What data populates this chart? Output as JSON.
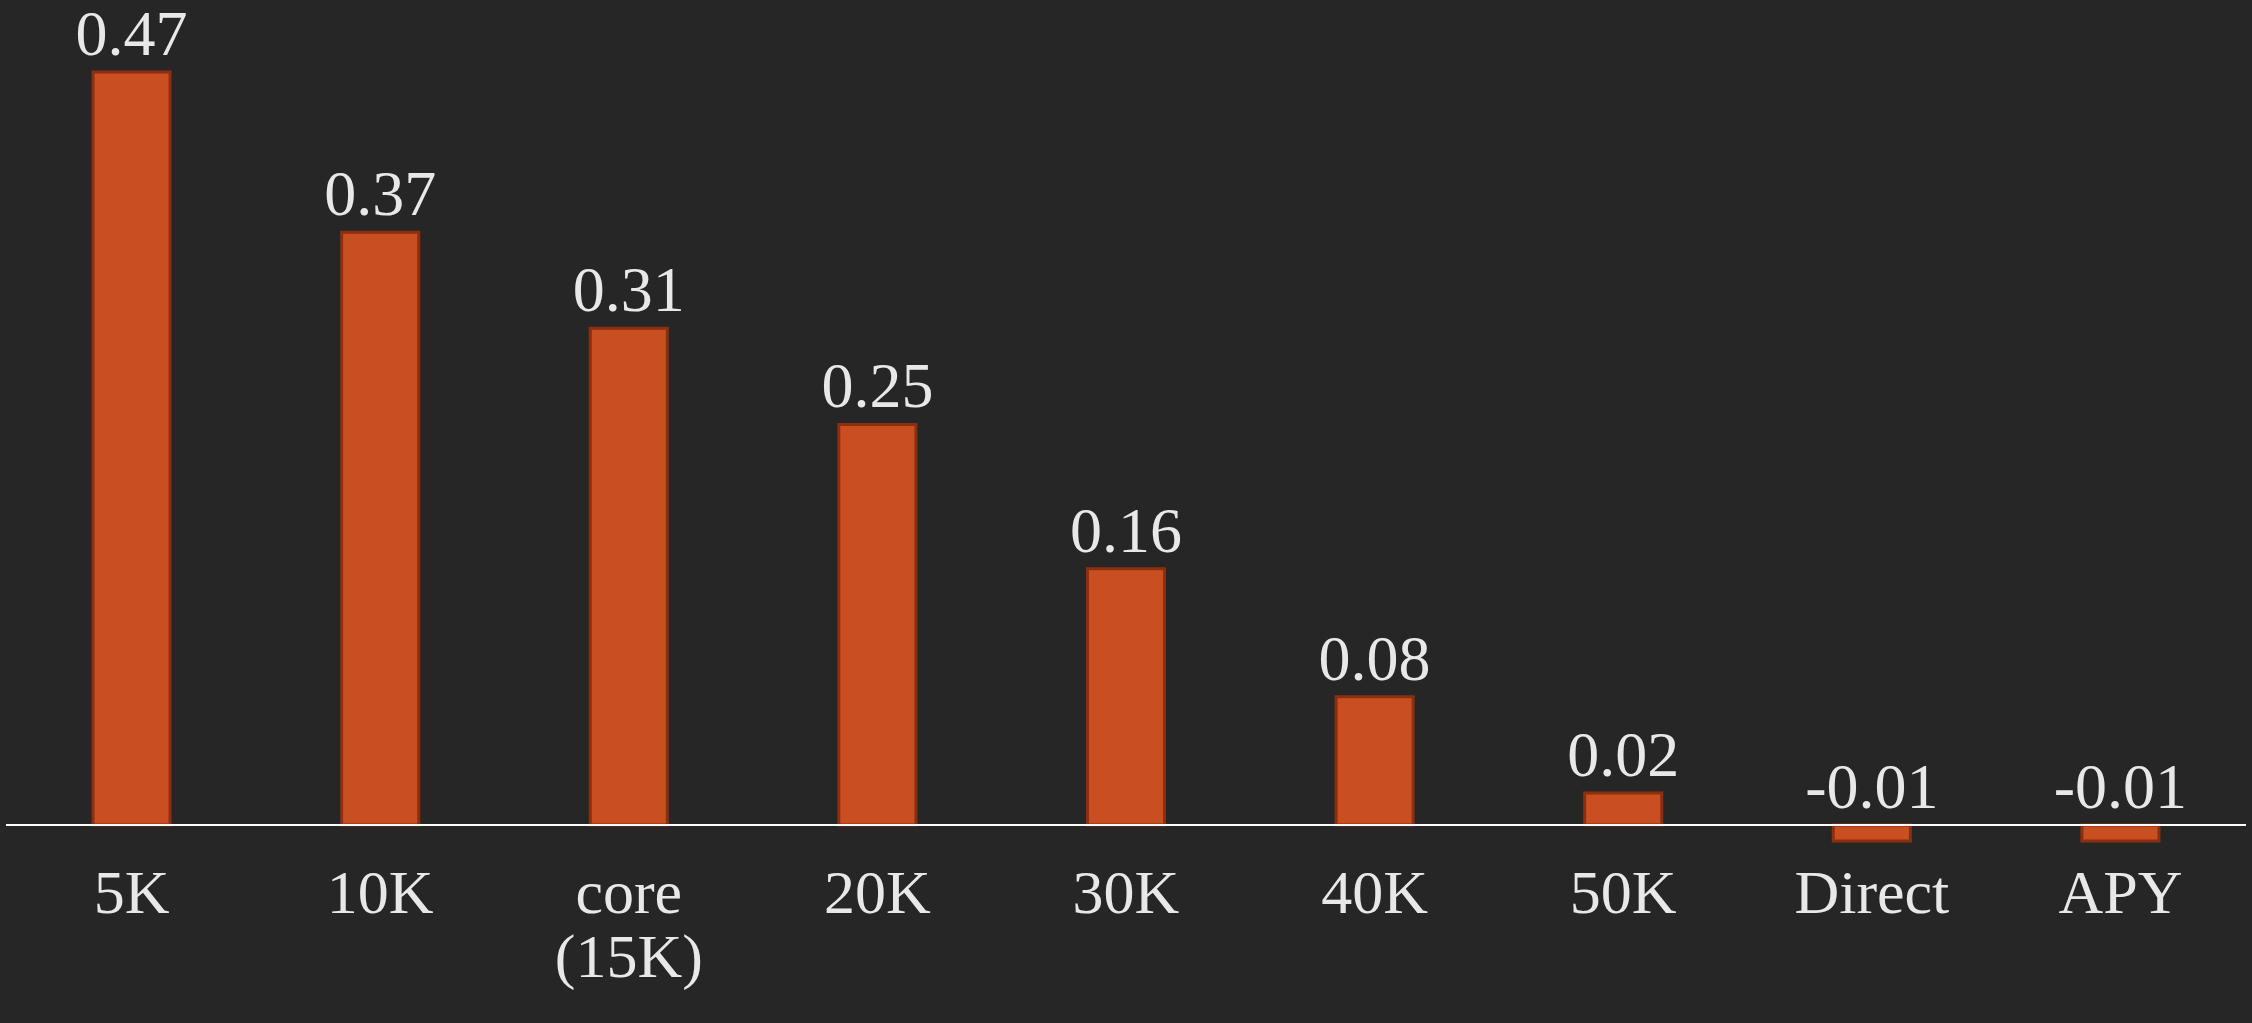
{
  "chart_data": {
    "type": "bar",
    "categories": [
      "5K",
      "10K",
      "core (15K)",
      "20K",
      "30K",
      "40K",
      "50K",
      "Direct",
      "APY"
    ],
    "values": [
      0.47,
      0.37,
      0.31,
      0.25,
      0.16,
      0.08,
      0.02,
      -0.01,
      -0.01
    ],
    "color": "#c94f22",
    "data_labels": true
  }
}
